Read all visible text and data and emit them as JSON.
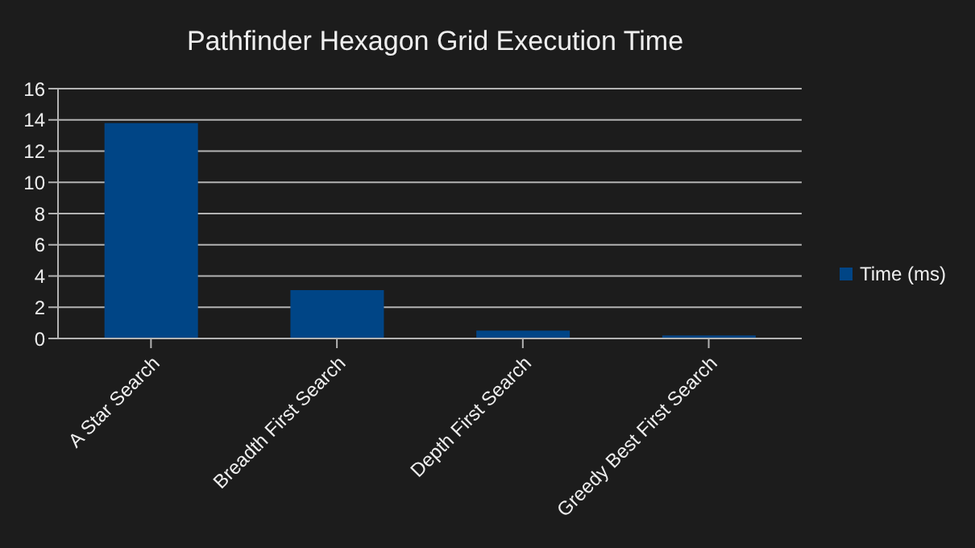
{
  "chart_data": {
    "type": "bar",
    "title": "Pathfinder Hexagon Grid Execution Time",
    "categories": [
      "A Star Search",
      "Breadth First Search",
      "Depth First Search",
      "Greedy Best First Search"
    ],
    "series": [
      {
        "name": "Time (ms)",
        "color": "#004586",
        "values": [
          13.8,
          3.1,
          0.5,
          0.2
        ]
      }
    ],
    "ylim": [
      0,
      16
    ],
    "yticks": [
      0,
      2,
      4,
      6,
      8,
      10,
      12,
      14,
      16
    ],
    "grid": "y",
    "legend": "right"
  }
}
